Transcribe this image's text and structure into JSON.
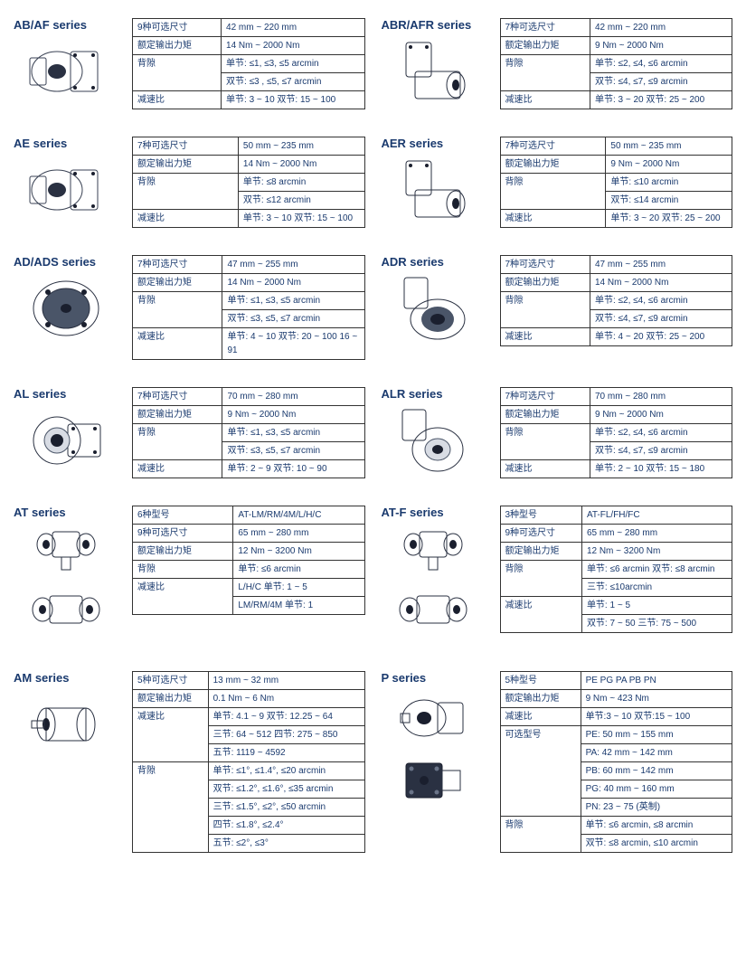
{
  "series": [
    {
      "title": "AB/AF series",
      "img_type": "inline",
      "rows": [
        {
          "label": "9种可选尺寸",
          "value": "42 mm ~ 220 mm",
          "rowspan": 1
        },
        {
          "label": "额定输出力矩",
          "value": "14 Nm ~ 2000 Nm",
          "rowspan": 1
        },
        {
          "label": "背隙",
          "value": "单节: ≤1, ≤3, ≤5 arcmin\n双节: ≤3 , ≤5, ≤7 arcmin",
          "rowspan": 1
        },
        {
          "label": "减速比",
          "value": "单节: 3 ~ 10   双节: 15 ~ 100",
          "rowspan": 1
        }
      ]
    },
    {
      "title": "ABR/AFR series",
      "img_type": "angle",
      "rows": [
        {
          "label": "7种可选尺寸",
          "value": "42 mm ~ 220 mm"
        },
        {
          "label": "额定输出力矩",
          "value": "9 Nm ~ 2000 Nm"
        },
        {
          "label": "背隙",
          "value": "单节: ≤2, ≤4, ≤6 arcmin\n双节: ≤4, ≤7, ≤9 arcmin"
        },
        {
          "label": "减速比",
          "value": "单节: 3 ~ 20   双节: 25 ~ 200"
        }
      ]
    },
    {
      "title": "AE series",
      "img_type": "inline",
      "rows": [
        {
          "label": "7种可选尺寸",
          "value": "50 mm ~ 235 mm"
        },
        {
          "label": "额定输出力矩",
          "value": "14 Nm ~ 2000 Nm"
        },
        {
          "label": "背隙",
          "value": "单节: ≤8 arcmin\n双节: ≤12 arcmin"
        },
        {
          "label": "减速比",
          "value": "单节: 3 ~ 10   双节: 15 ~ 100"
        }
      ]
    },
    {
      "title": "AER series",
      "img_type": "angle",
      "rows": [
        {
          "label": "7种可选尺寸",
          "value": "50 mm ~ 235 mm"
        },
        {
          "label": "额定输出力矩",
          "value": "9 Nm ~ 2000 Nm"
        },
        {
          "label": "背隙",
          "value": "单节: ≤10 arcmin\n双节: ≤14 arcmin"
        },
        {
          "label": "减速比",
          "value": "单节: 3 ~ 20   双节: 25 ~ 200"
        }
      ]
    },
    {
      "title": "AD/ADS series",
      "img_type": "disc",
      "rows": [
        {
          "label": "7种可选尺寸",
          "value": "47 mm ~ 255 mm"
        },
        {
          "label": "额定输出力矩",
          "value": "14 Nm ~ 2000 Nm"
        },
        {
          "label": "背隙",
          "value": "单节: ≤1, ≤3, ≤5 arcmin\n双节: ≤3, ≤5, ≤7 arcmin"
        },
        {
          "label": "减速比",
          "value": "单节: 4 ~ 10  双节: 20 ~ 100 16 ~ 91"
        }
      ]
    },
    {
      "title": "ADR series",
      "img_type": "angle-disc",
      "rows": [
        {
          "label": "7种可选尺寸",
          "value": "47 mm ~ 255 mm"
        },
        {
          "label": "额定输出力矩",
          "value": "14 Nm ~ 2000 Nm"
        },
        {
          "label": "背隙",
          "value": "单节: ≤2, ≤4, ≤6 arcmin\n双节: ≤4, ≤7, ≤9 arcmin"
        },
        {
          "label": "减速比",
          "value": "单节: 4 ~ 20   双节: 25 ~ 200"
        }
      ]
    },
    {
      "title": "AL series",
      "img_type": "flange",
      "rows": [
        {
          "label": "7种可选尺寸",
          "value": "70 mm ~ 280 mm"
        },
        {
          "label": "额定输出力矩",
          "value": "9 Nm ~ 2000 Nm"
        },
        {
          "label": "背隙",
          "value": "单节: ≤1, ≤3, ≤5 arcmin\n双节: ≤3, ≤5, ≤7 arcmin"
        },
        {
          "label": "减速比",
          "value": "单节: 2 ~ 9    双节: 10 ~ 90"
        }
      ]
    },
    {
      "title": "ALR series",
      "img_type": "angle-flange",
      "rows": [
        {
          "label": "7种可选尺寸",
          "value": "70 mm ~ 280 mm"
        },
        {
          "label": "额定输出力矩",
          "value": "9 Nm ~ 2000 Nm"
        },
        {
          "label": "背隙",
          "value": "单节: ≤2, ≤4, ≤6 arcmin\n双节: ≤4, ≤7, ≤9 arcmin"
        },
        {
          "label": "减速比",
          "value": "单节: 2 ~ 10   双节: 15 ~ 180"
        }
      ]
    },
    {
      "title": "AT series",
      "img_type": "double",
      "rows": [
        {
          "label": "6种型号",
          "value": "AT-LM/RM/4M/L/H/C"
        },
        {
          "label": "9种可选尺寸",
          "value": "65 mm ~ 280 mm"
        },
        {
          "label": "额定输出力矩",
          "value": "12 Nm ~ 3200 Nm"
        },
        {
          "label": "背隙",
          "value": "单节: ≤6 arcmin"
        },
        {
          "label": "减速比",
          "value": "L/H/C 单节: 1 ~ 5\nLM/RM/4M 单节: 1"
        }
      ]
    },
    {
      "title": "AT-F series",
      "img_type": "double",
      "rows": [
        {
          "label": "3种型号",
          "value": "AT-FL/FH/FC"
        },
        {
          "label": "9种可选尺寸",
          "value": "65 mm ~ 280 mm"
        },
        {
          "label": "额定输出力矩",
          "value": "12 Nm ~ 3200 Nm"
        },
        {
          "label": "背隙",
          "value": "单节: ≤6 arcmin 双节: ≤8 arcmin\n三节: ≤10arcmin"
        },
        {
          "label": "减速比",
          "value": "单节: 1 ~ 5\n双节: 7 ~ 50   三节: 75 ~ 500"
        }
      ]
    },
    {
      "title": "AM series",
      "img_type": "cylinder",
      "rows": [
        {
          "label": "5种可选尺寸",
          "value": "13 mm ~ 32 mm"
        },
        {
          "label": "额定输出力矩",
          "value": "0.1 Nm ~ 6 Nm"
        },
        {
          "label": "减速比",
          "value": "单节: 4.1 ~ 9  双节: 12.25 ~ 64\n三节: 64 ~ 512  四节: 275 ~ 850\n五节: 1119 ~ 4592"
        },
        {
          "label": "背隙",
          "value": "单节: ≤1°, ≤1.4°, ≤20 arcmin\n双节: ≤1.2°, ≤1.6°, ≤35 arcmin\n三节: ≤1.5°, ≤2°, ≤50 arcmin\n四节: ≤1.8°, ≤2.4°\n五节: ≤2°, ≤3°"
        }
      ]
    },
    {
      "title": "P series",
      "img_type": "p-double",
      "rows": [
        {
          "label": "5种型号",
          "value": "PE PG PA PB PN"
        },
        {
          "label": "额定输出力矩",
          "value": "9 Nm ~ 423 Nm"
        },
        {
          "label": "减速比",
          "value": "单节:3 ~ 10   双节:15 ~ 100"
        },
        {
          "label": "可选型号",
          "value": "PE: 50 mm ~ 155 mm\nPA: 42 mm ~ 142 mm\nPB: 60 mm ~ 142 mm\nPG: 40 mm ~ 160 mm\nPN: 23 ~ 75 (英制)"
        },
        {
          "label": "背隙",
          "value": "单节: ≤6 arcmin, ≤8 arcmin\n双节: ≤8 arcmin, ≤10 arcmin"
        }
      ]
    }
  ],
  "colors": {
    "heading": "#1a3a6e",
    "text": "#1a3a6e",
    "border": "#333333",
    "metal_light": "#d8dce4",
    "metal_mid": "#9aa3b5",
    "metal_dark": "#4a5568",
    "metal_darker": "#2a3142",
    "hole": "#1a1f2e"
  }
}
